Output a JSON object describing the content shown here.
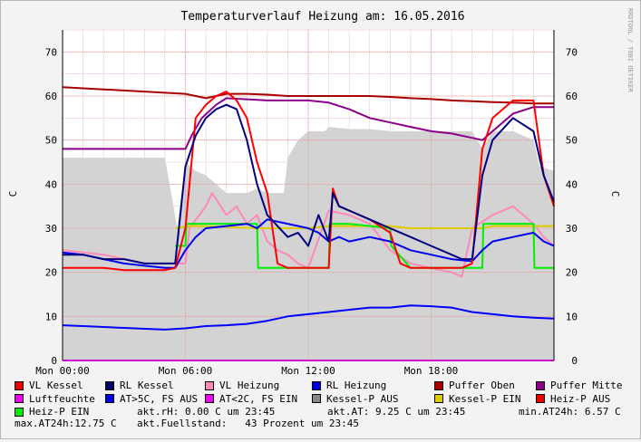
{
  "chart_data": {
    "type": "line",
    "title": "Temperaturverlauf Heizung am: 16.05.2016",
    "ylabel_left": "C",
    "ylabel_right": "C",
    "watermark": "RRDTOOL / TOBI OETIKER",
    "ylim": [
      0,
      75
    ],
    "yticks": [
      0,
      10,
      20,
      30,
      40,
      50,
      60,
      70
    ],
    "xlim": [
      0,
      24
    ],
    "xticks": [
      {
        "value": 0,
        "label": "Mon 00:00"
      },
      {
        "value": 6,
        "label": "Mon 06:00"
      },
      {
        "value": 12,
        "label": "Mon 12:00"
      },
      {
        "value": 18,
        "label": "Mon 18:00"
      }
    ],
    "grid": true,
    "series": [
      {
        "name": "Kessel-P AUS",
        "color": "#d3d3d3",
        "kind": "area",
        "x": [
          0,
          1,
          2,
          3,
          4,
          5,
          5.3,
          5.6,
          6,
          6.5,
          7,
          7.5,
          8,
          8.5,
          9,
          9.5,
          10,
          10.8,
          11,
          11.5,
          12,
          12.8,
          13,
          14,
          15,
          16,
          17,
          18,
          19,
          20,
          20.5,
          21,
          21.5,
          22,
          23,
          23.3,
          24
        ],
        "y": [
          46,
          46,
          46,
          46,
          46,
          46,
          38,
          30,
          45,
          43,
          42,
          40,
          38,
          38,
          38,
          39,
          38,
          38,
          46,
          50,
          52,
          52,
          53,
          52.5,
          52.5,
          52,
          52,
          52,
          52,
          52,
          48,
          52,
          52,
          52,
          50,
          44,
          43
        ]
      },
      {
        "name": "VL Heizung",
        "color": "#ff88bb",
        "x": [
          0,
          2,
          4,
          6,
          6.2,
          7,
          7.3,
          8,
          8.5,
          9,
          9.5,
          10,
          10.5,
          11,
          11.5,
          12,
          13,
          14,
          15,
          16,
          17,
          18,
          19,
          19.5,
          20,
          21,
          22,
          23,
          23.5,
          24
        ],
        "y": [
          25,
          24,
          22,
          22,
          30,
          35,
          38,
          33,
          35,
          31,
          33,
          27,
          25,
          24,
          22,
          21,
          34,
          33,
          31,
          25,
          22,
          21,
          20,
          19,
          30,
          33,
          35,
          31,
          28,
          26
        ]
      },
      {
        "name": "Puffer Oben",
        "color": "#a80000",
        "x": [
          0,
          2,
          4,
          6,
          7,
          8,
          9,
          10,
          11,
          12,
          13,
          14,
          15,
          16,
          17,
          18,
          19,
          20,
          21,
          22,
          23,
          24
        ],
        "y": [
          62,
          61.5,
          61,
          60.5,
          59.5,
          60.5,
          60.5,
          60.3,
          60,
          60,
          60,
          60,
          60,
          59.8,
          59.5,
          59.3,
          59,
          58.8,
          58.6,
          58.5,
          58.3,
          58.3
        ]
      },
      {
        "name": "Puffer Mitte",
        "color": "#8b008b",
        "x": [
          0,
          2,
          4,
          6,
          6.3,
          6.8,
          7.5,
          8,
          10,
          12,
          13,
          14,
          15,
          16,
          17,
          18,
          19,
          20,
          20.5,
          21,
          22,
          23,
          24
        ],
        "y": [
          48,
          48,
          48,
          48,
          51,
          55,
          58,
          59.5,
          59,
          59,
          58.5,
          57,
          55,
          54,
          53,
          52,
          51.5,
          50.5,
          50,
          52,
          56,
          57.5,
          57.5
        ]
      },
      {
        "name": "Luftfeuchte",
        "color": "#ff00ff",
        "x": [
          0,
          24
        ],
        "y": [
          0,
          0
        ]
      },
      {
        "name": "AT>5C, FS AUS",
        "color": "#0000ff",
        "x": [
          0,
          1,
          2,
          3,
          4,
          5,
          6,
          7,
          8,
          9,
          10,
          11,
          12,
          13,
          14,
          15,
          16,
          17,
          18,
          19,
          20,
          21,
          22,
          23,
          24
        ],
        "y": [
          8,
          7.8,
          7.6,
          7.4,
          7.2,
          7,
          7.3,
          7.8,
          8,
          8.3,
          9,
          10,
          10.5,
          11,
          11.5,
          12,
          12,
          12.5,
          12.3,
          12,
          11,
          10.5,
          10,
          9.7,
          9.5
        ]
      },
      {
        "name": "AT<2C, FS EIN",
        "color": "#ff00ff",
        "x": [
          0,
          24
        ],
        "y": [
          0,
          0
        ]
      },
      {
        "name": "Kessel-P EIN",
        "color": "#ddcc00",
        "x": [
          5.5,
          6.2,
          7,
          9.5,
          10.5,
          11,
          12,
          13,
          14,
          15,
          16,
          17,
          18,
          19,
          20,
          20.5,
          21,
          21.5,
          22,
          23,
          24
        ],
        "y": [
          30,
          30.5,
          30.5,
          30,
          30,
          30,
          30,
          30.5,
          30.5,
          30.5,
          30.5,
          30,
          30,
          30,
          30,
          30,
          30.5,
          30.5,
          30.5,
          30.5,
          30.5
        ]
      },
      {
        "name": "Heiz-P EIN",
        "color": "#00ee00",
        "x": [
          5.5,
          6,
          6.05,
          7,
          9.5,
          9.55,
          10,
          13,
          13.05,
          14,
          16,
          16.05,
          17,
          19,
          20.5,
          20.55,
          21,
          22,
          23,
          23.05,
          24
        ],
        "y": [
          26,
          26,
          31,
          31,
          31,
          21,
          21,
          21,
          31,
          31,
          30,
          26,
          21,
          21,
          21,
          31,
          31,
          31,
          31,
          21,
          21
        ]
      },
      {
        "name": "RL Heizung",
        "color": "#0000ee",
        "x": [
          0,
          1,
          2,
          3,
          4,
          5,
          5.5,
          6,
          6.5,
          7,
          8,
          9,
          9.5,
          10,
          11,
          12,
          12.5,
          13,
          13.5,
          14,
          15,
          16,
          17,
          18,
          19,
          20,
          20.5,
          21,
          22,
          23,
          23.5,
          24
        ],
        "y": [
          24.5,
          24,
          23,
          22,
          21.5,
          21,
          21,
          25,
          28,
          30,
          30.5,
          31,
          30,
          32,
          31,
          30,
          29,
          27,
          28,
          27,
          28,
          27,
          25,
          24,
          23,
          22.5,
          25,
          27,
          28,
          29,
          27,
          26
        ]
      },
      {
        "name": "Heiz-P AUS",
        "color": "#ee0000",
        "x": [
          0,
          24
        ],
        "y": [
          0,
          0
        ]
      },
      {
        "name": "VL Kessel",
        "color": "#ff0000",
        "x": [
          0,
          1,
          2,
          3,
          4,
          5,
          5.5,
          6,
          6.5,
          7,
          7.5,
          8,
          8.5,
          9,
          9.5,
          10,
          10.5,
          11,
          12,
          13,
          13.2,
          13.5,
          14,
          15,
          16,
          16.5,
          17,
          18,
          19,
          19.5,
          20,
          20.5,
          21,
          22,
          23,
          23.5,
          24
        ],
        "y": [
          21,
          21,
          21,
          20.5,
          20.5,
          20.5,
          21,
          30,
          55,
          58,
          60,
          61,
          59,
          55,
          45,
          38,
          22,
          21,
          21,
          21,
          39,
          35,
          34,
          32,
          29,
          22,
          21,
          21,
          21,
          21,
          22,
          48,
          55,
          59,
          59,
          42,
          35
        ]
      },
      {
        "name": "RL Kessel",
        "color": "#000080",
        "x": [
          0,
          1,
          2,
          3,
          4,
          5,
          5.5,
          6,
          6.5,
          7,
          7.5,
          8,
          8.5,
          9,
          9.5,
          10,
          11,
          11.5,
          12,
          12.5,
          13,
          13.2,
          13.5,
          14,
          15,
          16,
          17,
          18,
          19,
          19.5,
          20,
          20.5,
          21,
          22,
          23,
          23.5,
          24
        ],
        "y": [
          24,
          24,
          23,
          23,
          22,
          22,
          22,
          44,
          51,
          55,
          57,
          58,
          57,
          50,
          40,
          33,
          28,
          29,
          26,
          33,
          27,
          38,
          35,
          34,
          32,
          30,
          28,
          26,
          24,
          23,
          23,
          42,
          50,
          55,
          52,
          42,
          36
        ]
      }
    ]
  },
  "legend": [
    [
      {
        "label": "VL Kessel",
        "color": "#ee0000"
      },
      {
        "label": "RL Kessel",
        "color": "#000066"
      },
      {
        "label": "VL Heizung",
        "color": "#ff88bb"
      },
      {
        "label": "RL Heizung",
        "color": "#0000ee"
      },
      {
        "label": "Puffer Oben",
        "color": "#aa0000"
      },
      {
        "label": "Puffer Mitte",
        "color": "#880088"
      }
    ],
    [
      {
        "label": "Luftfeuchte",
        "color": "#ee00ee"
      },
      {
        "label": "AT>5C, FS AUS",
        "color": "#0000ee"
      },
      {
        "label": "AT<2C, FS EIN",
        "color": "#ee00ee"
      },
      {
        "label": "Kessel-P AUS",
        "color": "#888888"
      },
      {
        "label": "Kessel-P EIN",
        "color": "#ddcc00"
      },
      {
        "label": "Heiz-P AUS",
        "color": "#ee0000"
      }
    ],
    [
      {
        "label": "Heiz-P EIN",
        "color": "#00ee00"
      }
    ]
  ],
  "status": {
    "rh": "akt.rH: 0.00 C um 23:45",
    "at": "akt.AT: 9.25 C um 23:45",
    "min_at": "min.AT24h: 6.57 C",
    "max_at": "max.AT24h:12.75 C",
    "fuellstand": "akt.Fuellstand:   43 Prozent um 23:45"
  }
}
